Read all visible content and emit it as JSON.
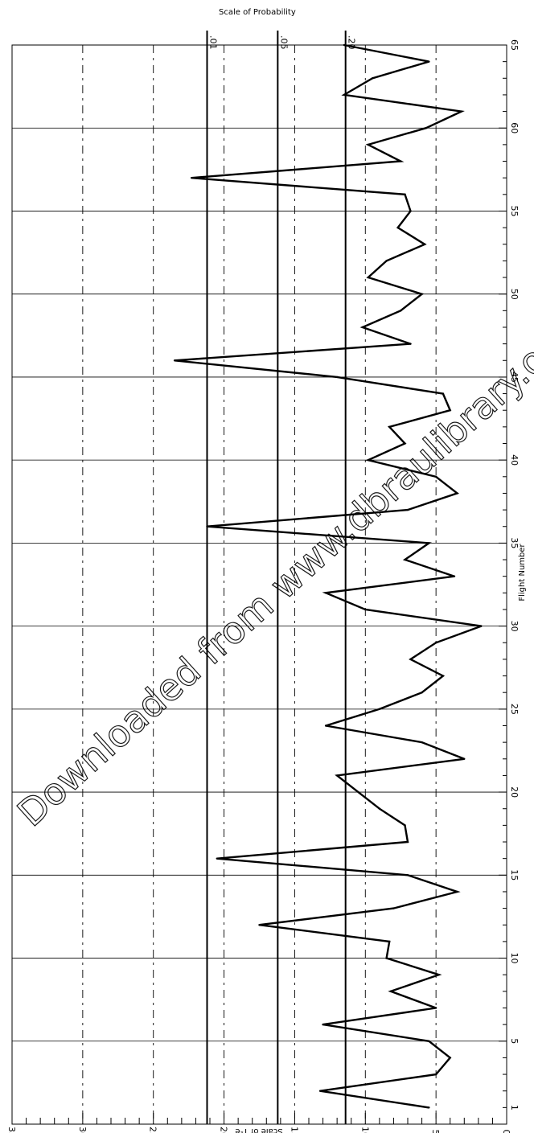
{
  "chart_data": {
    "type": "line",
    "orientation": "rotated-90",
    "xlabel": "Flight Number",
    "ylabel": "Scale of T²e",
    "top_axis_title": "Scale of Probability",
    "xlim": [
      0,
      65
    ],
    "ylim": [
      0,
      35
    ],
    "x_ticks": [
      "1",
      "5",
      "10",
      "15",
      "20",
      "25",
      "30",
      "35",
      "40",
      "45",
      "50",
      "55",
      "60",
      "65"
    ],
    "y_ticks": [
      "0",
      "5",
      "10",
      "15",
      "20",
      "25",
      "30",
      "35"
    ],
    "probability_lines": [
      {
        "label": ".01",
        "value": 21.2
      },
      {
        "label": ".05",
        "value": 16.2
      },
      {
        "label": ".20",
        "value": 11.4
      }
    ],
    "grid": true,
    "series": [
      {
        "x": [
          1,
          2,
          3,
          4,
          5,
          6,
          7,
          8,
          9,
          10,
          11,
          12,
          13,
          14,
          15,
          16,
          17,
          18,
          19,
          20,
          21,
          22,
          23,
          24,
          25,
          26,
          27,
          28,
          29,
          30,
          31,
          32,
          33,
          34,
          35,
          36,
          37,
          38,
          39,
          40,
          41,
          42,
          43,
          44,
          45,
          46,
          47,
          48,
          49,
          50,
          51,
          52,
          53,
          54,
          55,
          56,
          57,
          58,
          59,
          60,
          61,
          62,
          63,
          64,
          65
        ],
        "y": [
          5.5,
          13.2,
          5.0,
          4.0,
          5.5,
          13.0,
          5.0,
          8.2,
          4.8,
          8.5,
          8.3,
          17.5,
          8.0,
          3.5,
          7.0,
          20.5,
          7.0,
          7.2,
          9.0,
          10.5,
          12.0,
          3.0,
          6.0,
          12.8,
          9.0,
          6.0,
          4.5,
          6.8,
          5.0,
          1.8,
          10.0,
          12.8,
          3.7,
          7.2,
          5.5,
          21.2,
          7.0,
          3.5,
          5.0,
          9.8,
          7.2,
          8.3,
          4.0,
          4.5,
          12.0,
          23.5,
          6.8,
          10.2,
          7.5,
          6.0,
          9.8,
          8.5,
          5.8,
          7.7,
          6.8,
          7.2,
          22.3,
          7.5,
          9.8,
          5.7,
          3.2,
          11.5,
          9.5,
          5.5,
          11.5
        ]
      }
    ]
  },
  "watermark": "Downloaded from www.dbraulibrary.org.in"
}
